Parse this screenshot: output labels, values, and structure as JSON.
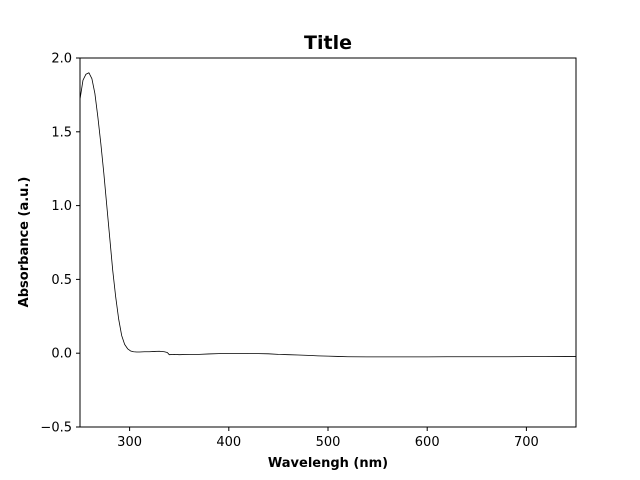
{
  "chart_data": {
    "type": "line",
    "title": "Title",
    "xlabel": "Wavelengh (nm)",
    "ylabel": "Absorbance (a.u.)",
    "xlim": [
      250,
      750
    ],
    "ylim": [
      -0.5,
      2.0
    ],
    "xticks": [
      300,
      400,
      500,
      600,
      700
    ],
    "yticks": [
      -0.5,
      0.0,
      0.5,
      1.0,
      1.5,
      2.0
    ],
    "grid": false,
    "legend": "none",
    "series": [
      {
        "color": "#000000",
        "x": [
          250,
          253,
          256,
          259,
          262,
          265,
          268,
          271,
          274,
          277,
          280,
          283,
          286,
          289,
          292,
          295,
          298,
          301,
          304,
          307,
          310,
          315,
          320,
          325,
          330,
          335,
          338,
          340,
          345,
          350,
          360,
          370,
          380,
          390,
          400,
          410,
          420,
          430,
          440,
          450,
          460,
          470,
          480,
          490,
          500,
          510,
          520,
          540,
          560,
          580,
          600,
          620,
          640,
          660,
          680,
          700,
          720,
          740,
          750
        ],
        "y": [
          1.72,
          1.85,
          1.89,
          1.9,
          1.86,
          1.76,
          1.6,
          1.42,
          1.22,
          1.0,
          0.78,
          0.56,
          0.38,
          0.23,
          0.12,
          0.06,
          0.03,
          0.015,
          0.01,
          0.008,
          0.008,
          0.01,
          0.01,
          0.012,
          0.013,
          0.01,
          0.005,
          -0.01,
          -0.008,
          -0.01,
          -0.008,
          -0.008,
          -0.005,
          -0.003,
          -0.002,
          -0.002,
          -0.003,
          -0.003,
          -0.004,
          -0.008,
          -0.01,
          -0.012,
          -0.015,
          -0.018,
          -0.02,
          -0.022,
          -0.024,
          -0.025,
          -0.025,
          -0.025,
          -0.025,
          -0.024,
          -0.024,
          -0.024,
          -0.024,
          -0.023,
          -0.023,
          -0.022,
          -0.022
        ]
      }
    ]
  }
}
